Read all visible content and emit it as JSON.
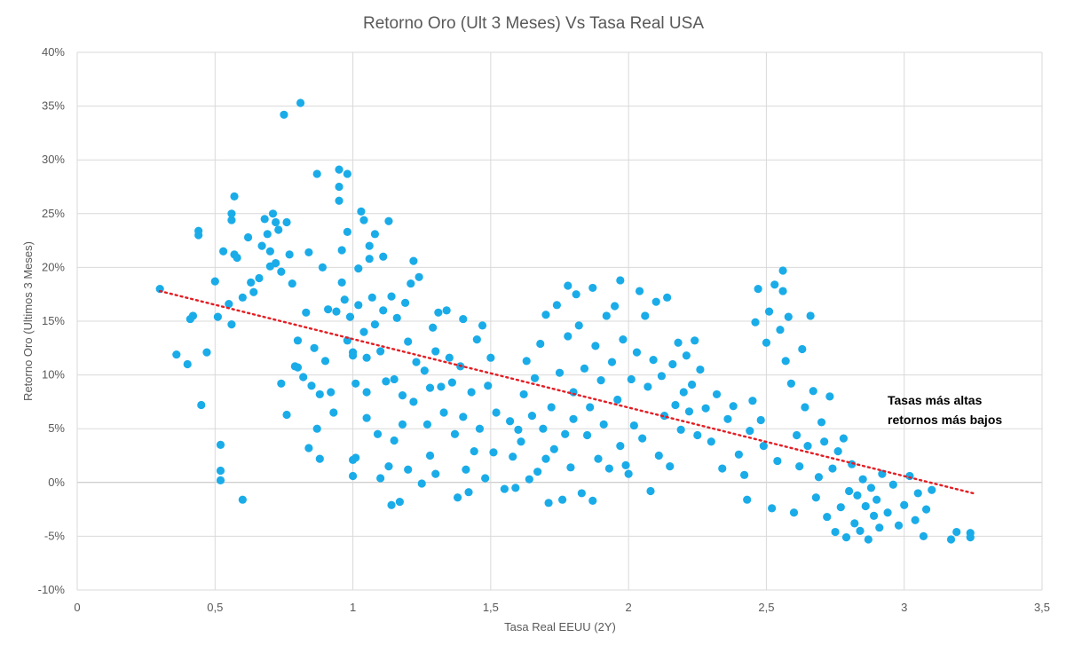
{
  "chart_data": {
    "type": "scatter",
    "title": "Retorno Oro (Ult 3 Meses) Vs Tasa Real USA",
    "xlabel": "Tasa Real EEUU (2Y)",
    "ylabel": "Retorno Oro (Ultimos 3 Meses)",
    "xlim": [
      0,
      3.5
    ],
    "ylim": [
      -10,
      40
    ],
    "x_ticks": [
      0,
      0.5,
      1,
      1.5,
      2,
      2.5,
      3,
      3.5
    ],
    "x_tick_labels": [
      "0",
      "0,5",
      "1",
      "1,5",
      "2",
      "2,5",
      "3",
      "3,5"
    ],
    "y_ticks": [
      -10,
      -5,
      0,
      5,
      10,
      15,
      20,
      25,
      30,
      35,
      40
    ],
    "y_tick_labels": [
      "-10%",
      "-5%",
      "0%",
      "5%",
      "10%",
      "15%",
      "20%",
      "25%",
      "30%",
      "35%",
      "40%"
    ],
    "grid": true,
    "colors": {
      "points": "#1aace8",
      "trendline": "#e31e24",
      "grid": "#d9d9d9",
      "text": "#595959"
    },
    "trendline": {
      "style": "dotted",
      "x": [
        0.3,
        3.25
      ],
      "y": [
        17.8,
        -1.0
      ]
    },
    "annotation": {
      "lines": [
        "Tasas más altas",
        "retornos más bajos"
      ]
    },
    "series": [
      {
        "points": [
          [
            0.3,
            18.0
          ],
          [
            0.36,
            11.9
          ],
          [
            0.4,
            11.0
          ],
          [
            0.41,
            15.2
          ],
          [
            0.42,
            15.5
          ],
          [
            0.44,
            23.0
          ],
          [
            0.44,
            23.4
          ],
          [
            0.45,
            7.2
          ],
          [
            0.47,
            12.1
          ],
          [
            0.5,
            18.7
          ],
          [
            0.51,
            15.4
          ],
          [
            0.52,
            3.5
          ],
          [
            0.52,
            1.1
          ],
          [
            0.52,
            0.2
          ],
          [
            0.53,
            21.5
          ],
          [
            0.55,
            16.6
          ],
          [
            0.56,
            14.7
          ],
          [
            0.56,
            24.4
          ],
          [
            0.56,
            25.0
          ],
          [
            0.57,
            26.6
          ],
          [
            0.57,
            21.2
          ],
          [
            0.58,
            20.9
          ],
          [
            0.6,
            17.2
          ],
          [
            0.6,
            -1.6
          ],
          [
            0.62,
            22.8
          ],
          [
            0.63,
            18.6
          ],
          [
            0.64,
            17.7
          ],
          [
            0.66,
            19.0
          ],
          [
            0.67,
            22.0
          ],
          [
            0.68,
            24.5
          ],
          [
            0.69,
            23.1
          ],
          [
            0.7,
            21.5
          ],
          [
            0.7,
            20.1
          ],
          [
            0.71,
            25.0
          ],
          [
            0.72,
            24.2
          ],
          [
            0.72,
            20.4
          ],
          [
            0.73,
            23.5
          ],
          [
            0.74,
            9.2
          ],
          [
            0.74,
            19.6
          ],
          [
            0.75,
            34.2
          ],
          [
            0.76,
            6.3
          ],
          [
            0.76,
            24.2
          ],
          [
            0.77,
            21.2
          ],
          [
            0.78,
            18.5
          ],
          [
            0.79,
            10.8
          ],
          [
            0.8,
            10.7
          ],
          [
            0.8,
            13.2
          ],
          [
            0.81,
            35.3
          ],
          [
            0.82,
            9.8
          ],
          [
            0.83,
            15.8
          ],
          [
            0.84,
            3.2
          ],
          [
            0.84,
            21.4
          ],
          [
            0.85,
            9.0
          ],
          [
            0.86,
            12.5
          ],
          [
            0.87,
            28.7
          ],
          [
            0.87,
            5.0
          ],
          [
            0.88,
            2.2
          ],
          [
            0.88,
            8.2
          ],
          [
            0.89,
            20.0
          ],
          [
            0.9,
            11.3
          ],
          [
            0.91,
            16.1
          ],
          [
            0.92,
            8.4
          ],
          [
            0.93,
            6.5
          ],
          [
            0.94,
            15.9
          ],
          [
            0.95,
            29.1
          ],
          [
            0.95,
            27.5
          ],
          [
            0.95,
            26.2
          ],
          [
            0.96,
            21.6
          ],
          [
            0.96,
            18.6
          ],
          [
            0.97,
            17.0
          ],
          [
            0.98,
            13.2
          ],
          [
            0.98,
            28.7
          ],
          [
            0.98,
            23.3
          ],
          [
            0.99,
            15.4
          ],
          [
            1.0,
            12.1
          ],
          [
            1.0,
            11.8
          ],
          [
            1.0,
            2.1
          ],
          [
            1.0,
            0.6
          ],
          [
            1.01,
            2.3
          ],
          [
            1.01,
            9.2
          ],
          [
            1.02,
            19.9
          ],
          [
            1.02,
            16.5
          ],
          [
            1.03,
            25.2
          ],
          [
            1.04,
            24.4
          ],
          [
            1.04,
            14.0
          ],
          [
            1.05,
            11.6
          ],
          [
            1.05,
            8.4
          ],
          [
            1.05,
            6.0
          ],
          [
            1.06,
            22.0
          ],
          [
            1.06,
            20.8
          ],
          [
            1.07,
            17.2
          ],
          [
            1.08,
            23.1
          ],
          [
            1.08,
            14.7
          ],
          [
            1.09,
            4.5
          ],
          [
            1.1,
            12.2
          ],
          [
            1.1,
            0.4
          ],
          [
            1.11,
            21.0
          ],
          [
            1.11,
            16.0
          ],
          [
            1.12,
            9.4
          ],
          [
            1.13,
            24.3
          ],
          [
            1.13,
            1.5
          ],
          [
            1.14,
            -2.1
          ],
          [
            1.14,
            17.3
          ],
          [
            1.15,
            9.6
          ],
          [
            1.15,
            3.9
          ],
          [
            1.16,
            15.3
          ],
          [
            1.17,
            -1.8
          ],
          [
            1.18,
            8.1
          ],
          [
            1.18,
            5.4
          ],
          [
            1.19,
            16.7
          ],
          [
            1.2,
            13.1
          ],
          [
            1.2,
            1.2
          ],
          [
            1.21,
            18.5
          ],
          [
            1.22,
            20.6
          ],
          [
            1.22,
            7.5
          ],
          [
            1.23,
            11.2
          ],
          [
            1.24,
            19.1
          ],
          [
            1.25,
            -0.1
          ],
          [
            1.26,
            10.4
          ],
          [
            1.27,
            5.4
          ],
          [
            1.28,
            8.8
          ],
          [
            1.28,
            2.5
          ],
          [
            1.29,
            14.4
          ],
          [
            1.3,
            12.2
          ],
          [
            1.3,
            0.8
          ],
          [
            1.31,
            15.8
          ],
          [
            1.32,
            8.9
          ],
          [
            1.33,
            6.5
          ],
          [
            1.34,
            16.0
          ],
          [
            1.35,
            11.6
          ],
          [
            1.36,
            9.3
          ],
          [
            1.37,
            4.5
          ],
          [
            1.38,
            -1.4
          ],
          [
            1.39,
            10.8
          ],
          [
            1.4,
            15.2
          ],
          [
            1.4,
            6.1
          ],
          [
            1.41,
            1.2
          ],
          [
            1.42,
            -0.9
          ],
          [
            1.43,
            8.4
          ],
          [
            1.44,
            2.9
          ],
          [
            1.45,
            13.3
          ],
          [
            1.46,
            5.0
          ],
          [
            1.47,
            14.6
          ],
          [
            1.48,
            0.4
          ],
          [
            1.49,
            9.0
          ],
          [
            1.5,
            11.6
          ],
          [
            1.51,
            2.8
          ],
          [
            1.52,
            6.5
          ],
          [
            1.55,
            -0.6
          ],
          [
            1.57,
            5.7
          ],
          [
            1.58,
            2.4
          ],
          [
            1.59,
            -0.5
          ],
          [
            1.6,
            4.9
          ],
          [
            1.61,
            3.8
          ],
          [
            1.62,
            8.2
          ],
          [
            1.63,
            11.3
          ],
          [
            1.64,
            0.3
          ],
          [
            1.65,
            6.2
          ],
          [
            1.66,
            9.7
          ],
          [
            1.67,
            1.0
          ],
          [
            1.68,
            12.9
          ],
          [
            1.69,
            5.0
          ],
          [
            1.7,
            15.6
          ],
          [
            1.7,
            2.2
          ],
          [
            1.71,
            -1.9
          ],
          [
            1.72,
            7.0
          ],
          [
            1.73,
            3.1
          ],
          [
            1.74,
            16.5
          ],
          [
            1.75,
            10.2
          ],
          [
            1.76,
            -1.6
          ],
          [
            1.77,
            4.5
          ],
          [
            1.78,
            18.3
          ],
          [
            1.78,
            13.6
          ],
          [
            1.79,
            1.4
          ],
          [
            1.8,
            8.4
          ],
          [
            1.8,
            5.9
          ],
          [
            1.81,
            17.5
          ],
          [
            1.82,
            14.6
          ],
          [
            1.83,
            -1.0
          ],
          [
            1.84,
            10.6
          ],
          [
            1.85,
            4.4
          ],
          [
            1.86,
            7.0
          ],
          [
            1.87,
            18.1
          ],
          [
            1.87,
            -1.7
          ],
          [
            1.88,
            12.7
          ],
          [
            1.89,
            2.2
          ],
          [
            1.9,
            9.5
          ],
          [
            1.91,
            5.4
          ],
          [
            1.92,
            15.5
          ],
          [
            1.93,
            1.3
          ],
          [
            1.94,
            11.2
          ],
          [
            1.95,
            16.4
          ],
          [
            1.96,
            7.7
          ],
          [
            1.97,
            18.8
          ],
          [
            1.97,
            3.4
          ],
          [
            1.98,
            13.3
          ],
          [
            1.99,
            1.6
          ],
          [
            2.0,
            0.8
          ],
          [
            2.01,
            9.6
          ],
          [
            2.02,
            5.3
          ],
          [
            2.03,
            12.1
          ],
          [
            2.04,
            17.8
          ],
          [
            2.05,
            4.1
          ],
          [
            2.06,
            15.5
          ],
          [
            2.07,
            8.9
          ],
          [
            2.08,
            -0.8
          ],
          [
            2.09,
            11.4
          ],
          [
            2.1,
            16.8
          ],
          [
            2.11,
            2.5
          ],
          [
            2.12,
            9.9
          ],
          [
            2.13,
            6.2
          ],
          [
            2.14,
            17.2
          ],
          [
            2.15,
            1.5
          ],
          [
            2.16,
            11.0
          ],
          [
            2.17,
            7.2
          ],
          [
            2.18,
            13.0
          ],
          [
            2.19,
            4.9
          ],
          [
            2.2,
            8.4
          ],
          [
            2.21,
            11.8
          ],
          [
            2.22,
            6.6
          ],
          [
            2.23,
            9.1
          ],
          [
            2.24,
            13.2
          ],
          [
            2.25,
            4.4
          ],
          [
            2.26,
            10.5
          ],
          [
            2.28,
            6.9
          ],
          [
            2.3,
            3.8
          ],
          [
            2.32,
            8.2
          ],
          [
            2.34,
            1.3
          ],
          [
            2.36,
            5.9
          ],
          [
            2.38,
            7.1
          ],
          [
            2.4,
            2.6
          ],
          [
            2.42,
            0.7
          ],
          [
            2.43,
            -1.6
          ],
          [
            2.44,
            4.8
          ],
          [
            2.45,
            7.6
          ],
          [
            2.46,
            14.9
          ],
          [
            2.47,
            18.0
          ],
          [
            2.48,
            5.8
          ],
          [
            2.49,
            3.4
          ],
          [
            2.5,
            13.0
          ],
          [
            2.51,
            15.9
          ],
          [
            2.52,
            -2.4
          ],
          [
            2.53,
            18.4
          ],
          [
            2.54,
            2.0
          ],
          [
            2.55,
            14.2
          ],
          [
            2.56,
            19.7
          ],
          [
            2.56,
            17.8
          ],
          [
            2.57,
            11.3
          ],
          [
            2.58,
            15.4
          ],
          [
            2.59,
            9.2
          ],
          [
            2.6,
            -2.8
          ],
          [
            2.61,
            4.4
          ],
          [
            2.62,
            1.5
          ],
          [
            2.63,
            12.4
          ],
          [
            2.64,
            7.0
          ],
          [
            2.65,
            3.4
          ],
          [
            2.66,
            15.5
          ],
          [
            2.67,
            8.5
          ],
          [
            2.68,
            -1.4
          ],
          [
            2.69,
            0.5
          ],
          [
            2.7,
            5.6
          ],
          [
            2.71,
            3.8
          ],
          [
            2.72,
            -3.2
          ],
          [
            2.73,
            8.0
          ],
          [
            2.74,
            1.3
          ],
          [
            2.75,
            -4.6
          ],
          [
            2.76,
            2.9
          ],
          [
            2.77,
            -2.3
          ],
          [
            2.78,
            4.1
          ],
          [
            2.79,
            -5.1
          ],
          [
            2.8,
            -0.8
          ],
          [
            2.81,
            1.7
          ],
          [
            2.82,
            -3.8
          ],
          [
            2.83,
            -1.2
          ],
          [
            2.84,
            -4.5
          ],
          [
            2.85,
            0.3
          ],
          [
            2.86,
            -2.2
          ],
          [
            2.87,
            -5.3
          ],
          [
            2.88,
            -0.5
          ],
          [
            2.89,
            -3.1
          ],
          [
            2.9,
            -1.6
          ],
          [
            2.91,
            -4.2
          ],
          [
            2.92,
            0.8
          ],
          [
            2.94,
            -2.8
          ],
          [
            2.96,
            -0.2
          ],
          [
            2.98,
            -4.0
          ],
          [
            3.0,
            -2.1
          ],
          [
            3.02,
            0.6
          ],
          [
            3.04,
            -3.5
          ],
          [
            3.05,
            -1.0
          ],
          [
            3.07,
            -5.0
          ],
          [
            3.08,
            -2.5
          ],
          [
            3.1,
            -0.7
          ],
          [
            3.17,
            -5.3
          ],
          [
            3.19,
            -4.6
          ],
          [
            3.24,
            -5.1
          ],
          [
            3.24,
            -4.7
          ]
        ]
      }
    ]
  }
}
